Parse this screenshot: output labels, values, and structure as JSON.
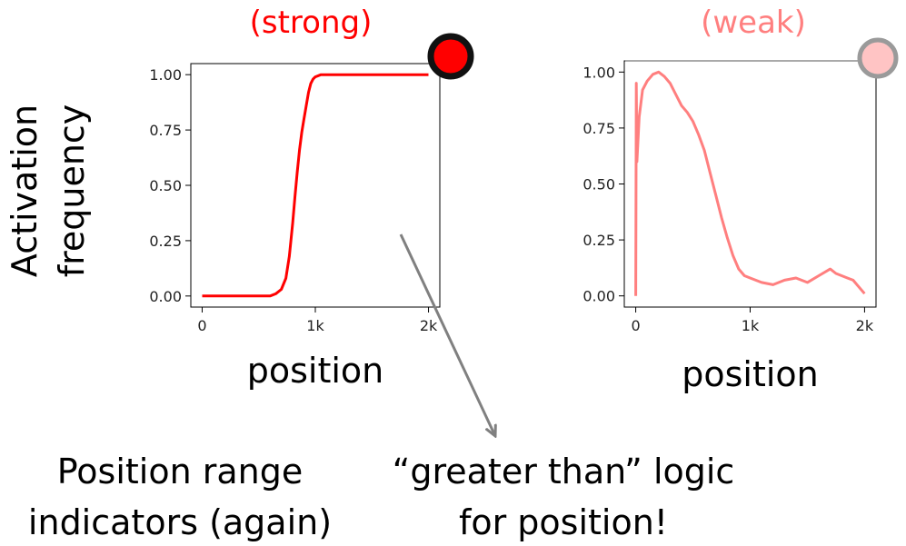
{
  "y_axis_label_line1": "Activation",
  "y_axis_label_line2": "frequency",
  "caption_left_line1": "Position range",
  "caption_left_line2": "indicators (again)",
  "caption_right_line1": "“greater than” logic",
  "caption_right_line2": "for position!",
  "colors": {
    "strong": "#ff0000",
    "weak": "#ff7f7f",
    "arrow": "#808080"
  },
  "chart_data": [
    {
      "type": "line",
      "title": "(strong)",
      "xlabel": "position",
      "ylabel": "",
      "xlim": [
        -100,
        2100
      ],
      "ylim": [
        -0.05,
        1.05
      ],
      "x_ticks": [
        0,
        1000,
        2000
      ],
      "x_tick_labels": [
        "0",
        "1k",
        "2k"
      ],
      "y_ticks": [
        0,
        0.25,
        0.5,
        0.75,
        1.0
      ],
      "y_tick_labels": [
        "0.00",
        "0.25",
        "0.50",
        "0.75",
        "1.00"
      ],
      "series": [
        {
          "color": "#ff0000",
          "x": [
            0,
            100,
            200,
            300,
            400,
            500,
            600,
            650,
            700,
            740,
            770,
            800,
            820,
            840,
            860,
            880,
            900,
            920,
            940,
            960,
            980,
            1000,
            1050,
            1100,
            1200,
            1400,
            1600,
            1800,
            2000
          ],
          "y": [
            0,
            0,
            0,
            0,
            0,
            0,
            0,
            0.01,
            0.03,
            0.08,
            0.18,
            0.33,
            0.45,
            0.56,
            0.66,
            0.74,
            0.8,
            0.86,
            0.92,
            0.96,
            0.98,
            0.99,
            1.0,
            1.0,
            1.0,
            1.0,
            1.0,
            1.0,
            1.0
          ]
        }
      ],
      "legend_marker": "dark circle with red fill"
    },
    {
      "type": "line",
      "title": "(weak)",
      "xlabel": "position",
      "ylabel": "",
      "xlim": [
        -100,
        2100
      ],
      "ylim": [
        -0.05,
        1.05
      ],
      "x_ticks": [
        0,
        1000,
        2000
      ],
      "x_tick_labels": [
        "0",
        "1k",
        "2k"
      ],
      "y_ticks": [
        0,
        0.25,
        0.5,
        0.75,
        1.0
      ],
      "y_tick_labels": [
        "0.00",
        "0.25",
        "0.50",
        "0.75",
        "1.00"
      ],
      "series": [
        {
          "color": "#ff7f7f",
          "x": [
            0,
            5,
            10,
            30,
            60,
            100,
            150,
            200,
            250,
            300,
            350,
            400,
            450,
            500,
            550,
            600,
            650,
            700,
            750,
            800,
            850,
            900,
            950,
            1000,
            1100,
            1200,
            1300,
            1400,
            1500,
            1600,
            1700,
            1750,
            1800,
            1850,
            1900,
            1950,
            2000
          ],
          "y": [
            0.0,
            0.95,
            0.6,
            0.8,
            0.92,
            0.96,
            0.99,
            1.0,
            0.98,
            0.95,
            0.9,
            0.85,
            0.82,
            0.78,
            0.72,
            0.65,
            0.55,
            0.45,
            0.35,
            0.26,
            0.18,
            0.12,
            0.09,
            0.08,
            0.06,
            0.05,
            0.07,
            0.08,
            0.06,
            0.09,
            0.12,
            0.1,
            0.09,
            0.08,
            0.07,
            0.04,
            0.01
          ]
        }
      ],
      "legend_marker": "grey-ringed circle with pink fill"
    }
  ]
}
